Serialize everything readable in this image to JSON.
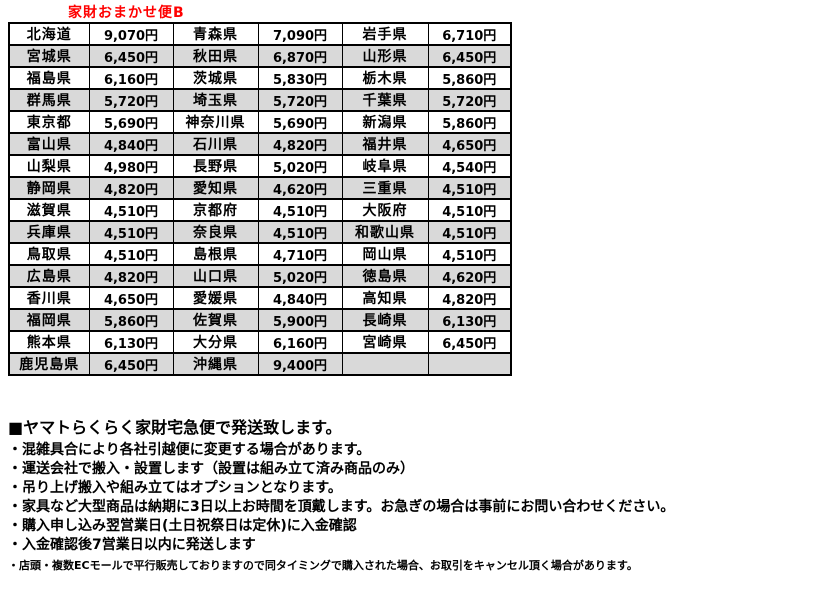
{
  "title": {
    "text": "家財おまかせ便B",
    "color": "#ff0000"
  },
  "price_table": {
    "description": "prefecture shipping fee table, 3 pairs of (prefecture, price) per row",
    "row_colors": {
      "odd": "#ffffff",
      "even": "#d9d9d9"
    },
    "border_color": "#000000",
    "rows": [
      [
        "北海道",
        "9,070円",
        "青森県",
        "7,090円",
        "岩手県",
        "6,710円"
      ],
      [
        "宮城県",
        "6,450円",
        "秋田県",
        "6,870円",
        "山形県",
        "6,450円"
      ],
      [
        "福島県",
        "6,160円",
        "茨城県",
        "5,830円",
        "栃木県",
        "5,860円"
      ],
      [
        "群馬県",
        "5,720円",
        "埼玉県",
        "5,720円",
        "千葉県",
        "5,720円"
      ],
      [
        "東京都",
        "5,690円",
        "神奈川県",
        "5,690円",
        "新潟県",
        "5,860円"
      ],
      [
        "富山県",
        "4,840円",
        "石川県",
        "4,820円",
        "福井県",
        "4,650円"
      ],
      [
        "山梨県",
        "4,980円",
        "長野県",
        "5,020円",
        "岐阜県",
        "4,540円"
      ],
      [
        "静岡県",
        "4,820円",
        "愛知県",
        "4,620円",
        "三重県",
        "4,510円"
      ],
      [
        "滋賀県",
        "4,510円",
        "京都府",
        "4,510円",
        "大阪府",
        "4,510円"
      ],
      [
        "兵庫県",
        "4,510円",
        "奈良県",
        "4,510円",
        "和歌山県",
        "4,510円"
      ],
      [
        "鳥取県",
        "4,510円",
        "島根県",
        "4,710円",
        "岡山県",
        "4,510円"
      ],
      [
        "広島県",
        "4,820円",
        "山口県",
        "5,020円",
        "徳島県",
        "4,620円"
      ],
      [
        "香川県",
        "4,650円",
        "愛媛県",
        "4,840円",
        "高知県",
        "4,820円"
      ],
      [
        "福岡県",
        "5,860円",
        "佐賀県",
        "5,900円",
        "長崎県",
        "6,130円"
      ],
      [
        "熊本県",
        "6,130円",
        "大分県",
        "6,160円",
        "宮崎県",
        "6,450円"
      ],
      [
        "鹿児島県",
        "6,450円",
        "沖縄県",
        "9,400円",
        "",
        ""
      ]
    ]
  },
  "notes": {
    "heading": "■ヤマトらくらく家財宅急便で発送致します。",
    "bullets": [
      "・混雑具合により各社引越便に変更する場合があります。",
      "・運送会社で搬入・設置します（設置は組み立て済み商品のみ）",
      "・吊り上げ搬入や組み立てはオプションとなります。",
      "・家具など大型商品は納期に3日以上お時間を頂戴します。お急ぎの場合は事前にお問い合わせください。",
      "・購入申し込み翌営業日(土日祝祭日は定休)に入金確認",
      "・入金確認後7営業日以内に発送します"
    ],
    "footnote": "・店頭・複数ECモールで平行販売しておりますので同タイミングで購入された場合、お取引をキャンセル頂く場合があります。"
  }
}
